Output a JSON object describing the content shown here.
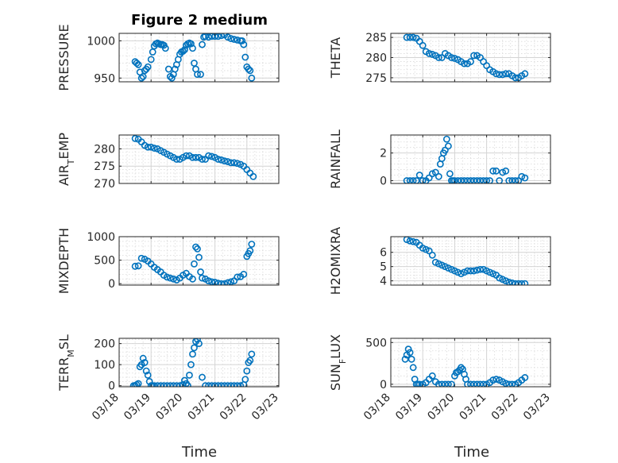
{
  "title": "Figure 2 medium",
  "colors": {
    "marker": "#0072BD",
    "axes": "#262626"
  },
  "time_ticks": [
    "03/18",
    "03/19",
    "03/20",
    "03/21",
    "03/22",
    "03/23"
  ],
  "time_label": "Time",
  "chart_data": [
    {
      "type": "scatter",
      "ylabel": "PRESSURE",
      "ylim": [
        945,
        1010
      ],
      "yticks": [
        "950",
        "1000"
      ],
      "ytick_values": [
        950,
        1000
      ],
      "grid": true,
      "x": [
        18.5,
        18.55,
        18.6,
        18.65,
        18.7,
        18.75,
        18.8,
        18.85,
        18.9,
        19.0,
        19.05,
        19.1,
        19.15,
        19.2,
        19.25,
        19.3,
        19.35,
        19.4,
        19.45,
        19.55,
        19.6,
        19.65,
        19.7,
        19.75,
        19.8,
        19.85,
        19.9,
        19.95,
        20.0,
        20.05,
        20.1,
        20.15,
        20.2,
        20.25,
        20.3,
        20.35,
        20.4,
        20.45,
        20.55,
        20.6,
        20.65,
        20.7,
        20.8,
        20.9,
        21.0,
        21.1,
        21.2,
        21.3,
        21.4,
        21.5,
        21.6,
        21.7,
        21.8,
        21.85,
        21.9,
        21.95,
        22.0,
        22.05,
        22.1,
        22.15
      ],
      "y": [
        972,
        970,
        968,
        958,
        950,
        952,
        960,
        962,
        965,
        975,
        985,
        993,
        996,
        997,
        996,
        995,
        995,
        994,
        990,
        962,
        952,
        950,
        955,
        962,
        968,
        975,
        982,
        985,
        986,
        988,
        994,
        996,
        997,
        996,
        990,
        970,
        962,
        955,
        955,
        995,
        1005,
        1006,
        1005,
        1006,
        1006,
        1006,
        1007,
        1008,
        1005,
        1003,
        1002,
        1001,
        1000,
        1000,
        995,
        978,
        965,
        962,
        960,
        950
      ]
    },
    {
      "type": "scatter",
      "ylabel": "THETA",
      "ylim": [
        274,
        286
      ],
      "yticks": [
        "275",
        "280",
        "285"
      ],
      "ytick_values": [
        275,
        280,
        285
      ],
      "grid": true,
      "x": [
        18.5,
        18.6,
        18.7,
        18.8,
        18.9,
        19.0,
        19.1,
        19.2,
        19.3,
        19.4,
        19.5,
        19.6,
        19.7,
        19.8,
        19.9,
        20.0,
        20.1,
        20.2,
        20.3,
        20.4,
        20.5,
        20.6,
        20.7,
        20.8,
        20.9,
        21.0,
        21.1,
        21.2,
        21.3,
        21.4,
        21.5,
        21.6,
        21.7,
        21.8,
        21.9,
        22.0,
        22.1,
        22.2
      ],
      "y": [
        285,
        285,
        285,
        284.8,
        284,
        283,
        281.5,
        281,
        280.8,
        280.5,
        280,
        280,
        281,
        280.5,
        280,
        279.8,
        279.5,
        279,
        278.5,
        278.5,
        279,
        280.5,
        280.5,
        280,
        279,
        278,
        277,
        276.5,
        276,
        275.8,
        275.8,
        276,
        276,
        275.5,
        275,
        275,
        275.5,
        276
      ]
    },
    {
      "type": "scatter",
      "ylabel": "AIR_TEMP",
      "ylim": [
        270,
        284
      ],
      "yticks": [
        "270",
        "275",
        "280"
      ],
      "ytick_values": [
        270,
        275,
        280
      ],
      "grid": true,
      "x": [
        18.5,
        18.6,
        18.7,
        18.8,
        18.9,
        19.0,
        19.1,
        19.2,
        19.3,
        19.4,
        19.5,
        19.6,
        19.7,
        19.8,
        19.9,
        20.0,
        20.1,
        20.2,
        20.3,
        20.4,
        20.5,
        20.6,
        20.7,
        20.8,
        20.9,
        21.0,
        21.1,
        21.2,
        21.3,
        21.4,
        21.5,
        21.6,
        21.7,
        21.8,
        21.9,
        22.0,
        22.1,
        22.2
      ],
      "y": [
        283,
        282.8,
        282,
        281,
        280.5,
        280.5,
        280.2,
        280,
        279.5,
        279,
        278.5,
        278,
        277.5,
        277,
        277,
        277.5,
        278,
        278,
        277.5,
        277.5,
        277.5,
        277,
        277,
        278,
        277.8,
        277.5,
        277,
        276.8,
        276.5,
        276.3,
        276,
        276,
        275.8,
        275.5,
        275,
        274,
        273,
        272
      ]
    },
    {
      "type": "scatter",
      "ylabel": "RAINFALL",
      "ylim": [
        -0.2,
        3.3
      ],
      "yticks": [
        "0",
        "2"
      ],
      "ytick_values": [
        0,
        2
      ],
      "grid": true,
      "x": [
        18.5,
        18.6,
        18.7,
        18.8,
        18.9,
        19.0,
        19.1,
        19.2,
        19.3,
        19.4,
        19.5,
        19.55,
        19.6,
        19.65,
        19.7,
        19.75,
        19.8,
        19.85,
        19.9,
        19.95,
        20.0,
        20.1,
        20.2,
        20.3,
        20.4,
        20.5,
        20.6,
        20.7,
        20.8,
        20.9,
        21.0,
        21.1,
        21.2,
        21.3,
        21.4,
        21.5,
        21.6,
        21.7,
        21.8,
        21.9,
        22.0,
        22.1,
        22.2
      ],
      "y": [
        0,
        0,
        0,
        0,
        0.4,
        0,
        0,
        0.2,
        0.5,
        0.6,
        0.3,
        1.2,
        1.6,
        2.0,
        2.2,
        3.0,
        2.5,
        0.5,
        0,
        0,
        0,
        0,
        0,
        0,
        0,
        0,
        0,
        0,
        0,
        0,
        0,
        0,
        0.7,
        0.7,
        0,
        0.6,
        0.7,
        0,
        0,
        0,
        0,
        0.3,
        0.2
      ]
    },
    {
      "type": "scatter",
      "ylabel": "MIXDEPTH",
      "ylim": [
        -30,
        1000
      ],
      "yticks": [
        "0",
        "500",
        "1000"
      ],
      "ytick_values": [
        0,
        500,
        1000
      ],
      "grid": true,
      "x": [
        18.5,
        18.6,
        18.7,
        18.8,
        18.9,
        19.0,
        19.1,
        19.2,
        19.3,
        19.4,
        19.5,
        19.6,
        19.7,
        19.8,
        19.9,
        20.0,
        20.1,
        20.2,
        20.3,
        20.35,
        20.4,
        20.45,
        20.5,
        20.55,
        20.6,
        20.7,
        20.8,
        20.9,
        21.0,
        21.1,
        21.2,
        21.3,
        21.4,
        21.5,
        21.6,
        21.7,
        21.8,
        21.9,
        22.0,
        22.05,
        22.1,
        22.15
      ],
      "y": [
        370,
        380,
        540,
        520,
        480,
        420,
        350,
        300,
        250,
        180,
        140,
        120,
        100,
        80,
        120,
        180,
        220,
        150,
        100,
        420,
        780,
        740,
        560,
        250,
        120,
        100,
        60,
        40,
        30,
        10,
        0,
        0,
        20,
        40,
        60,
        140,
        150,
        200,
        580,
        640,
        700,
        840
      ]
    },
    {
      "type": "scatter",
      "ylabel": "H2OMIXRA",
      "ylim": [
        3.7,
        7.1
      ],
      "yticks": [
        "4",
        "5",
        "6"
      ],
      "ytick_values": [
        4,
        5,
        6
      ],
      "grid": true,
      "x": [
        18.5,
        18.6,
        18.7,
        18.8,
        18.9,
        19.0,
        19.1,
        19.2,
        19.3,
        19.4,
        19.5,
        19.6,
        19.7,
        19.8,
        19.9,
        20.0,
        20.1,
        20.2,
        20.3,
        20.4,
        20.5,
        20.6,
        20.7,
        20.8,
        20.9,
        21.0,
        21.1,
        21.2,
        21.3,
        21.4,
        21.5,
        21.6,
        21.7,
        21.8,
        21.9,
        22.0,
        22.1,
        22.2
      ],
      "y": [
        6.9,
        6.8,
        6.75,
        6.7,
        6.5,
        6.3,
        6.2,
        6.1,
        5.8,
        5.3,
        5.2,
        5.1,
        5.0,
        4.9,
        4.8,
        4.7,
        4.6,
        4.5,
        4.6,
        4.7,
        4.7,
        4.7,
        4.75,
        4.8,
        4.8,
        4.7,
        4.6,
        4.5,
        4.4,
        4.2,
        4.1,
        4.0,
        3.9,
        3.85,
        3.8,
        3.8,
        3.8,
        3.8
      ]
    },
    {
      "type": "scatter",
      "ylabel": "TERR_MSL",
      "ylim": [
        -5,
        225
      ],
      "yticks": [
        "0",
        "100",
        "200"
      ],
      "ytick_values": [
        0,
        100,
        200
      ],
      "grid": true,
      "x": [
        18.45,
        18.5,
        18.55,
        18.6,
        18.65,
        18.7,
        18.75,
        18.8,
        18.85,
        18.9,
        18.95,
        19.0,
        19.05,
        19.1,
        19.2,
        19.3,
        19.4,
        19.5,
        19.6,
        19.7,
        19.8,
        19.9,
        20.0,
        20.05,
        20.1,
        20.15,
        20.2,
        20.25,
        20.3,
        20.35,
        20.4,
        20.45,
        20.5,
        20.6,
        20.7,
        20.8,
        20.9,
        21.0,
        21.1,
        21.2,
        21.3,
        21.4,
        21.5,
        21.6,
        21.7,
        21.8,
        21.9,
        21.95,
        22.0,
        22.05,
        22.1,
        22.15
      ],
      "y": [
        0,
        0,
        5,
        10,
        90,
        100,
        130,
        110,
        70,
        50,
        20,
        0,
        0,
        0,
        0,
        0,
        0,
        0,
        0,
        0,
        0,
        0,
        5,
        25,
        10,
        0,
        50,
        100,
        150,
        180,
        210,
        220,
        200,
        40,
        0,
        0,
        0,
        0,
        0,
        0,
        0,
        0,
        0,
        0,
        0,
        0,
        5,
        30,
        70,
        110,
        120,
        150
      ]
    },
    {
      "type": "scatter",
      "ylabel": "SUN_FLUX",
      "ylim": [
        -30,
        550
      ],
      "yticks": [
        "0",
        "500"
      ],
      "ytick_values": [
        0,
        500
      ],
      "grid": true,
      "x": [
        18.45,
        18.5,
        18.55,
        18.6,
        18.65,
        18.7,
        18.75,
        18.8,
        18.85,
        18.9,
        19.0,
        19.1,
        19.2,
        19.3,
        19.4,
        19.5,
        19.6,
        19.7,
        19.8,
        19.9,
        20.0,
        20.05,
        20.1,
        20.15,
        20.2,
        20.25,
        20.3,
        20.35,
        20.4,
        20.5,
        20.6,
        20.7,
        20.8,
        20.9,
        21.0,
        21.1,
        21.2,
        21.3,
        21.4,
        21.5,
        21.6,
        21.7,
        21.8,
        21.9,
        22.0,
        22.1,
        22.2
      ],
      "y": [
        300,
        350,
        420,
        380,
        300,
        200,
        60,
        0,
        0,
        0,
        0,
        20,
        60,
        100,
        30,
        0,
        0,
        0,
        0,
        0,
        100,
        140,
        150,
        170,
        200,
        180,
        120,
        60,
        0,
        0,
        0,
        0,
        0,
        0,
        0,
        20,
        50,
        60,
        50,
        30,
        10,
        0,
        0,
        0,
        20,
        50,
        80
      ]
    }
  ]
}
